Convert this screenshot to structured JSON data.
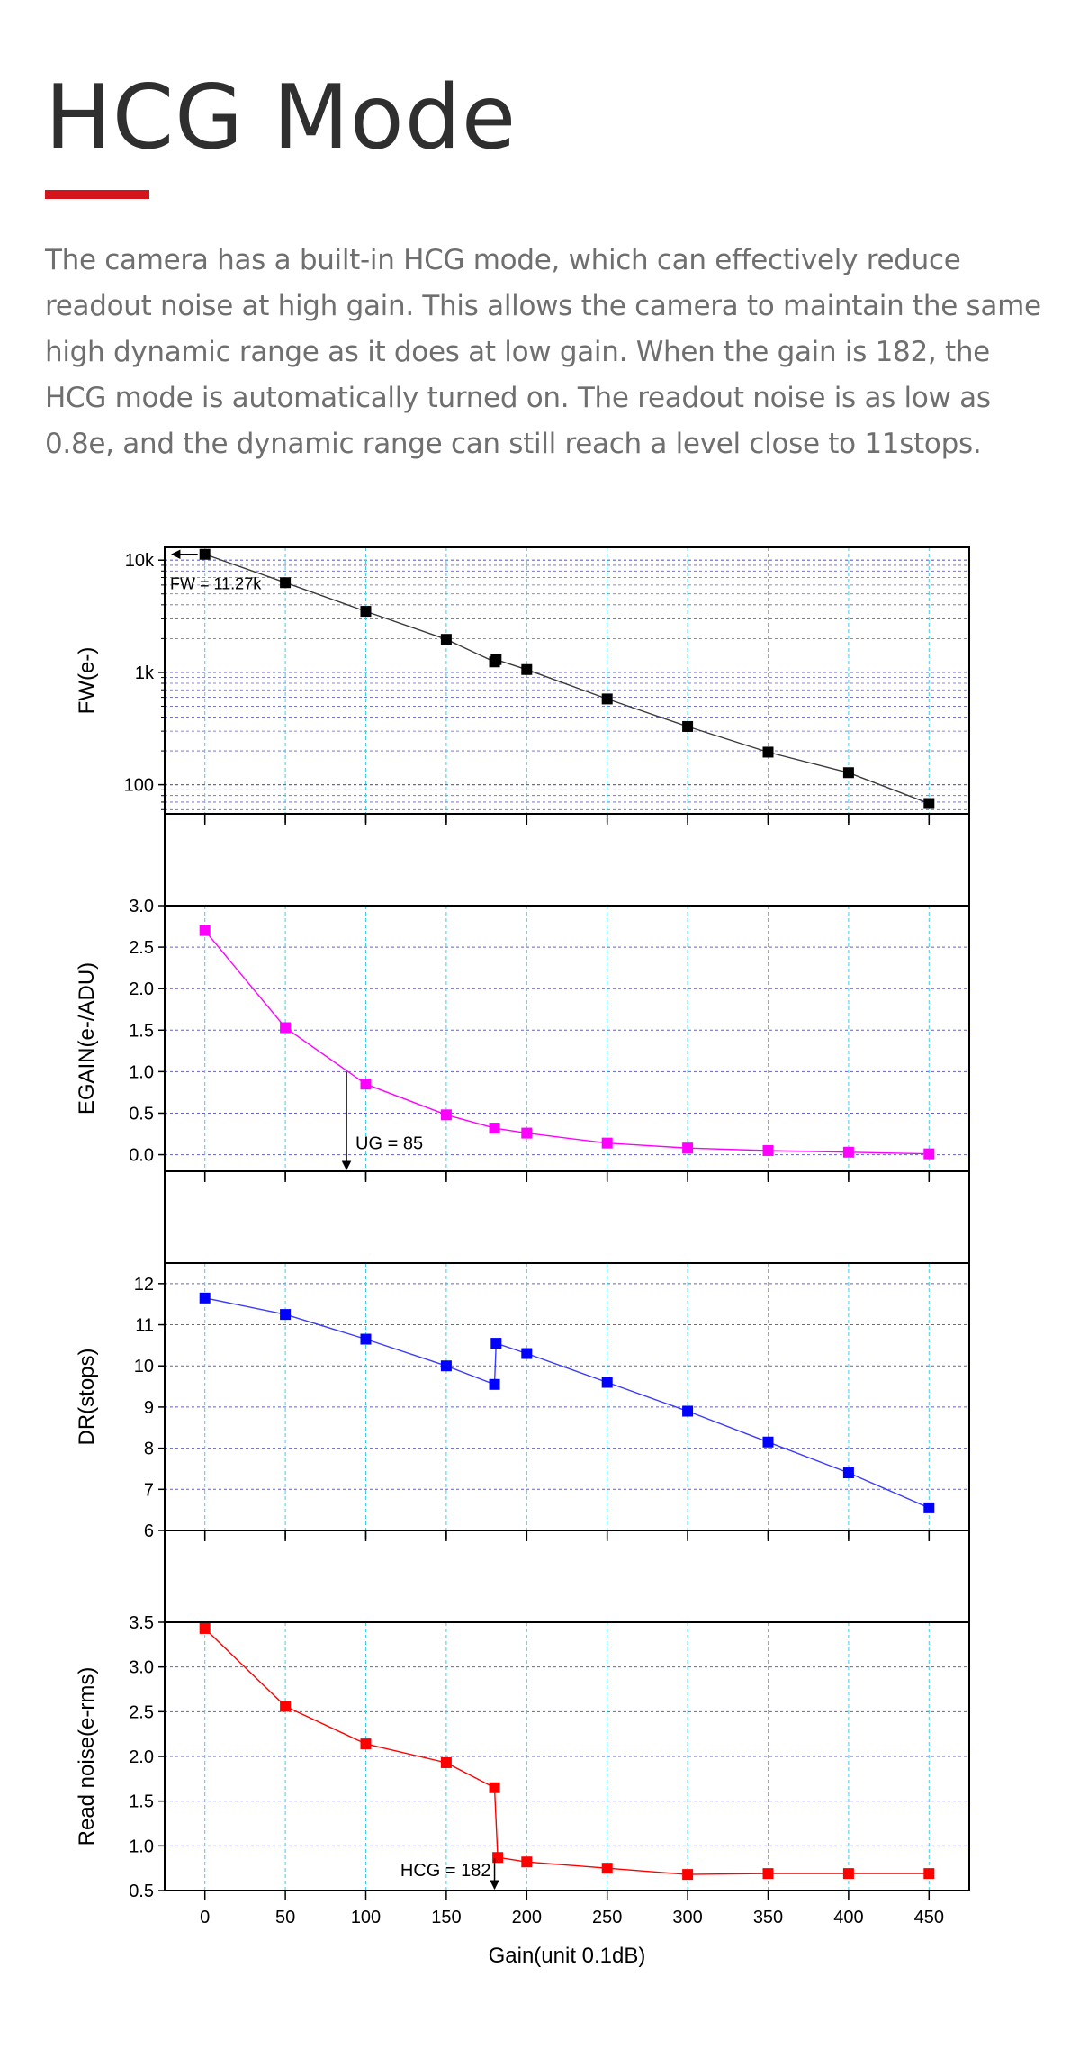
{
  "page": {
    "title": "HCG Mode",
    "accent_color": "#d4161c",
    "description": "The camera has a built-in HCG mode, which can effectively reduce readout noise at high gain. This allows the camera to maintain the same high dynamic range as it does at low gain. When the gain is 182, the HCG mode is automatically turned on. The readout noise is as low as 0.8e, and the dynamic range can still reach a level close to 11stops."
  },
  "chart_data": [
    {
      "type": "line",
      "ylabel": "FW(e-)",
      "yscale": "log",
      "ylim": [
        55,
        13000
      ],
      "yticks": [
        {
          "v": 100,
          "label": "100"
        },
        {
          "v": 1000,
          "label": "1k"
        },
        {
          "v": 10000,
          "label": "10k"
        }
      ],
      "color": "#000000",
      "line_color": "#3a3a3a",
      "x": [
        0,
        50,
        100,
        150,
        180,
        181,
        200,
        250,
        300,
        350,
        400,
        450
      ],
      "values": [
        11270,
        6300,
        3500,
        1970,
        1240,
        1300,
        1060,
        580,
        330,
        195,
        128,
        68
      ],
      "annotation": {
        "text": "FW = 11.27k",
        "x": 0,
        "y": 11270,
        "arrow": "left"
      }
    },
    {
      "type": "line",
      "ylabel": "EGAIN(e-/ADU)",
      "yscale": "linear",
      "ylim": [
        -0.2,
        3.0
      ],
      "yticks": [
        {
          "v": 0.0,
          "label": "0.0"
        },
        {
          "v": 0.5,
          "label": "0.5"
        },
        {
          "v": 1.0,
          "label": "1.0"
        },
        {
          "v": 1.5,
          "label": "1.5"
        },
        {
          "v": 2.0,
          "label": "2.0"
        },
        {
          "v": 2.5,
          "label": "2.5"
        },
        {
          "v": 3.0,
          "label": "3.0"
        }
      ],
      "color": "#ff00ff",
      "line_color": "#ff00ff",
      "x": [
        0,
        50,
        100,
        150,
        180,
        200,
        250,
        300,
        350,
        400,
        450
      ],
      "values": [
        2.7,
        1.53,
        0.85,
        0.48,
        0.32,
        0.26,
        0.14,
        0.08,
        0.05,
        0.03,
        0.01
      ],
      "annotation": {
        "text": "UG = 85",
        "x": 88,
        "y": 1.0,
        "arrow": "down"
      }
    },
    {
      "type": "line",
      "ylabel": "DR(stops)",
      "yscale": "linear",
      "ylim": [
        6,
        12.5
      ],
      "yticks": [
        {
          "v": 6,
          "label": "6"
        },
        {
          "v": 7,
          "label": "7"
        },
        {
          "v": 8,
          "label": "8"
        },
        {
          "v": 9,
          "label": "9"
        },
        {
          "v": 10,
          "label": "10"
        },
        {
          "v": 11,
          "label": "11"
        },
        {
          "v": 12,
          "label": "12"
        }
      ],
      "color": "#0000ff",
      "line_color": "#3a3aff",
      "x": [
        0,
        50,
        100,
        150,
        180,
        181,
        200,
        250,
        300,
        350,
        400,
        450
      ],
      "values": [
        11.65,
        11.25,
        10.65,
        10.0,
        9.55,
        10.55,
        10.3,
        9.6,
        8.9,
        8.15,
        7.4,
        6.55
      ]
    },
    {
      "type": "line",
      "ylabel": "Read noise(e-rms)",
      "yscale": "linear",
      "ylim": [
        0.5,
        3.5
      ],
      "yticks": [
        {
          "v": 0.5,
          "label": "0.5"
        },
        {
          "v": 1.0,
          "label": "1.0"
        },
        {
          "v": 1.5,
          "label": "1.5"
        },
        {
          "v": 2.0,
          "label": "2.0"
        },
        {
          "v": 2.5,
          "label": "2.5"
        },
        {
          "v": 3.0,
          "label": "3.0"
        },
        {
          "v": 3.5,
          "label": "3.5"
        }
      ],
      "color": "#ff0000",
      "line_color": "#ff0000",
      "x": [
        0,
        50,
        100,
        150,
        180,
        182,
        200,
        250,
        300,
        350,
        400,
        450
      ],
      "values": [
        3.43,
        2.56,
        2.14,
        1.93,
        1.65,
        0.87,
        0.82,
        0.75,
        0.68,
        0.69,
        0.69,
        0.69
      ],
      "annotation": {
        "text": "HCG = 182",
        "x": 180,
        "y": 0.72,
        "arrow": "down"
      }
    }
  ],
  "x_axis": {
    "label": "Gain(unit 0.1dB)",
    "ticks": [
      0,
      50,
      100,
      150,
      200,
      250,
      300,
      350,
      400,
      450
    ],
    "range": [
      -25,
      475
    ]
  }
}
